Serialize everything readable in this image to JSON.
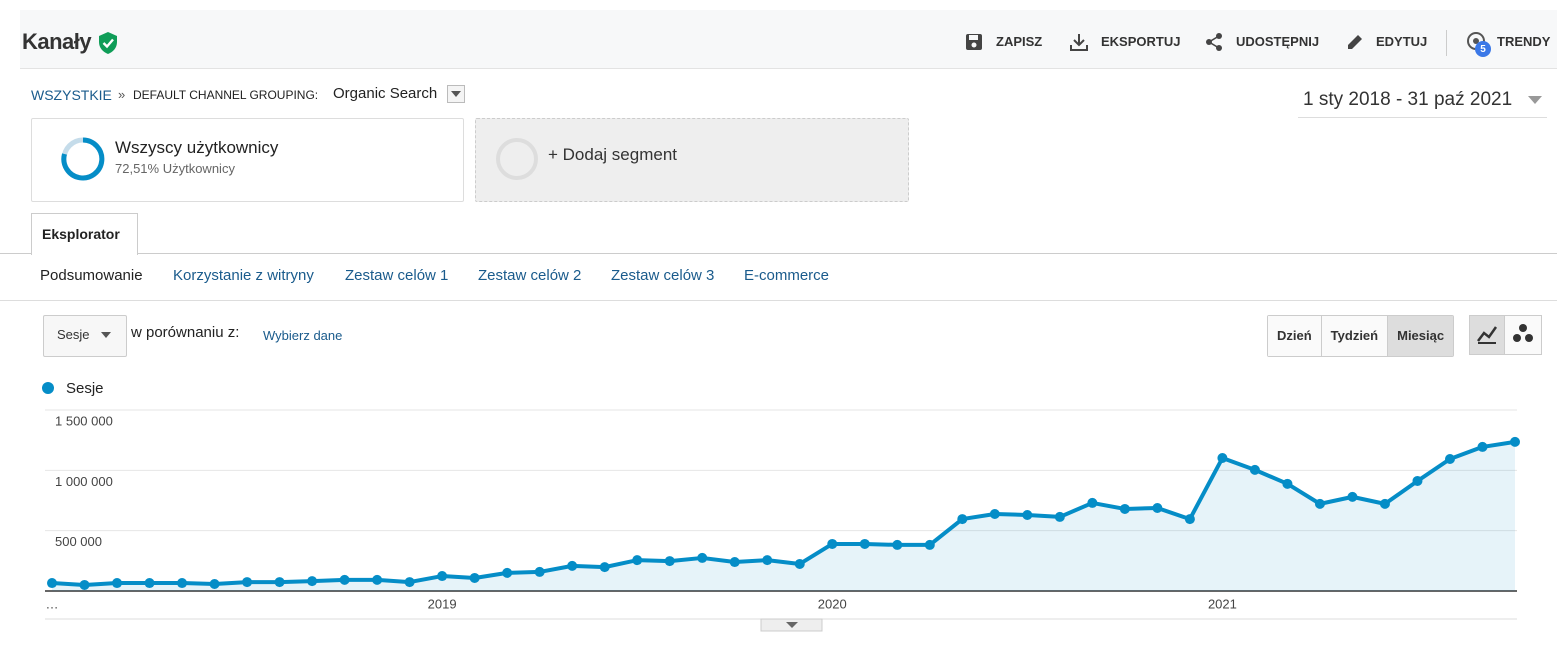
{
  "header": {
    "title": "Kanały",
    "actions": [
      "ZAPISZ",
      "EKSPORTUJ",
      "UDOSTĘPNIJ",
      "EDYTUJ",
      "TRENDY"
    ],
    "trends_badge": "5"
  },
  "breadcrumb": {
    "root": "WSZYSTKIE",
    "separator": "»",
    "label": "DEFAULT CHANNEL GROUPING:",
    "value": "Organic Search"
  },
  "date_range": "1 sty 2018 - 31 paź 2021",
  "segments": [
    {
      "name": "Wszyscy użytkownicy",
      "detail": "72,51% Użytkownicy"
    },
    {
      "name": "+ Dodaj segment"
    }
  ],
  "tab": "Eksplorator",
  "subtabs": [
    "Podsumowanie",
    "Korzystanie z witryny",
    "Zestaw celów 1",
    "Zestaw celów 2",
    "Zestaw celów 3",
    "E-commerce"
  ],
  "controls": {
    "metric": "Sesje",
    "compare_label": "w porównaniu z:",
    "compare_link": "Wybierz dane",
    "periods": [
      "Dzień",
      "Tydzień",
      "Miesiąc"
    ],
    "active_period": 2
  },
  "chart_data": {
    "type": "line",
    "categories": [
      "…",
      null,
      null,
      null,
      null,
      null,
      null,
      null,
      null,
      null,
      null,
      null,
      "2019",
      null,
      null,
      null,
      null,
      null,
      null,
      null,
      null,
      null,
      null,
      null,
      "2020",
      null,
      null,
      null,
      null,
      null,
      null,
      null,
      null,
      null,
      null,
      null,
      "2021",
      null,
      null,
      null,
      null,
      null,
      null,
      null,
      null,
      null
    ],
    "series": [
      {
        "name": "Sesje",
        "color": "#058dc7",
        "values": [
          66000,
          50000,
          66000,
          66000,
          66000,
          58000,
          74000,
          74000,
          82000,
          92000,
          92000,
          74000,
          124000,
          108000,
          150000,
          158000,
          208000,
          198000,
          256000,
          248000,
          274000,
          240000,
          256000,
          224000,
          390000,
          390000,
          382000,
          382000,
          596000,
          638000,
          630000,
          614000,
          730000,
          680000,
          688000,
          596000,
          1102000,
          1004000,
          888000,
          722000,
          780000,
          722000,
          912000,
          1094000,
          1194000,
          1236000
        ]
      }
    ],
    "ylim": [
      0,
      1500000
    ],
    "yticks": [
      {
        "value": 500000,
        "label": "500 000"
      },
      {
        "value": 1000000,
        "label": "1 000 000"
      },
      {
        "value": 1500000,
        "label": "1 500 000"
      }
    ],
    "grid": true
  }
}
